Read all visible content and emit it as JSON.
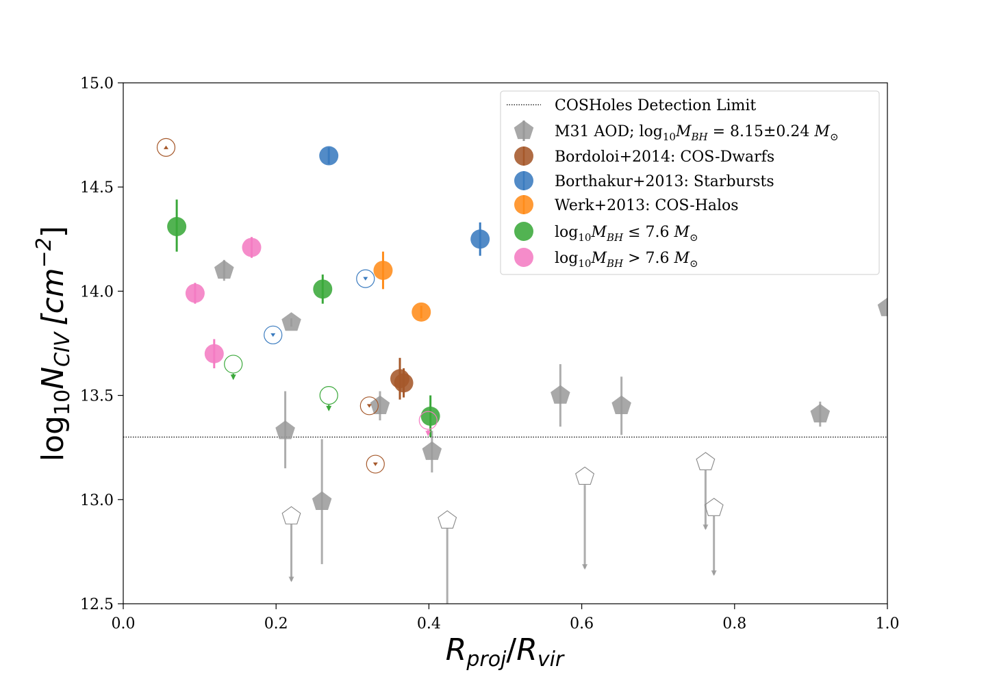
{
  "chart_data": {
    "type": "scatter",
    "xlim": [
      0.0,
      1.0
    ],
    "ylim": [
      12.5,
      15.0
    ],
    "xticks": [
      0.0,
      0.2,
      0.4,
      0.6,
      0.8,
      1.0
    ],
    "yticks": [
      12.5,
      13.0,
      13.5,
      14.0,
      14.5,
      15.0
    ],
    "xtick_labels": [
      "0.0",
      "0.2",
      "0.4",
      "0.6",
      "0.8",
      "1.0"
    ],
    "ytick_labels": [
      "12.5",
      "13.0",
      "13.5",
      "14.0",
      "14.5",
      "15.0"
    ],
    "xlabel": {
      "base": "R",
      "num_sub": "proj",
      "sep": "/",
      "den": "R",
      "den_sub": "vir"
    },
    "ylabel": {
      "pre": "log",
      "pre_sub": "10",
      "main": "N",
      "main_sub": "CIV",
      "unit_open": "[cm",
      "unit_sup": "−2",
      "unit_close": "]"
    },
    "grid": false,
    "legend_position": "top-right",
    "detection_limit": {
      "y": 13.3,
      "label": "COSHoles Detection Limit"
    },
    "colors": {
      "m31": "#999999",
      "bordoloi": "#a5582a",
      "borthakur": "#3a7bbf",
      "werk": "#ff8c1a",
      "low_mbh": "#3aa83a",
      "high_mbh": "#f47cc3"
    },
    "legend": [
      {
        "key": "limit",
        "label": "COSHoles Detection Limit"
      },
      {
        "key": "m31",
        "parts": [
          "M31 AOD; log",
          "10",
          "M",
          "BH",
          " = 8.15±0.24 ",
          "M",
          "⊙"
        ]
      },
      {
        "key": "bordoloi",
        "label": "Bordoloi+2014: COS-Dwarfs"
      },
      {
        "key": "borthakur",
        "label": "Borthakur+2013: Starbursts"
      },
      {
        "key": "werk",
        "label": "Werk+2013: COS-Halos"
      },
      {
        "key": "low_mbh",
        "parts": [
          "log",
          "10",
          "M",
          "BH",
          " ≤ 7.6 ",
          "M",
          "⊙"
        ]
      },
      {
        "key": "high_mbh",
        "parts": [
          "log",
          "10",
          "M",
          "BH",
          " > 7.6 ",
          "M",
          "⊙"
        ]
      }
    ],
    "series": [
      {
        "name": "M31 AOD",
        "key": "m31",
        "marker": "pentagon",
        "points": [
          {
            "x": 0.132,
            "y": 14.1,
            "lo": 0.05,
            "hi": 0.05
          },
          {
            "x": 0.22,
            "y": 13.85,
            "lo": 0.02,
            "hi": 0.02
          },
          {
            "x": 0.212,
            "y": 13.33,
            "lo": 0.18,
            "hi": 0.19
          },
          {
            "x": 0.26,
            "y": 12.99,
            "lo": 0.3,
            "hi": 0.3
          },
          {
            "x": 0.336,
            "y": 13.45,
            "lo": 0.07,
            "hi": 0.07
          },
          {
            "x": 0.404,
            "y": 13.23,
            "lo": 0.1,
            "hi": 0.1
          },
          {
            "x": 0.572,
            "y": 13.5,
            "lo": 0.15,
            "hi": 0.15
          },
          {
            "x": 0.652,
            "y": 13.45,
            "lo": 0.14,
            "hi": 0.14
          },
          {
            "x": 0.912,
            "y": 13.41,
            "lo": 0.06,
            "hi": 0.06
          },
          {
            "x": 1.0,
            "y": 13.92,
            "lo": 0.0,
            "hi": 0.0
          }
        ],
        "upper_limits": [
          {
            "x": 0.22,
            "y": 12.92,
            "arrow_to": 12.61
          },
          {
            "x": 0.424,
            "y": 12.9,
            "arrow_to": 12.45
          },
          {
            "x": 0.604,
            "y": 13.11,
            "arrow_to": 12.67
          },
          {
            "x": 0.762,
            "y": 13.18,
            "arrow_to": 12.86
          },
          {
            "x": 0.773,
            "y": 12.96,
            "arrow_to": 12.64
          }
        ]
      },
      {
        "name": "Bordoloi+2014: COS-Dwarfs",
        "key": "bordoloi",
        "marker": "circle",
        "points": [
          {
            "x": 0.362,
            "y": 13.58,
            "lo": 0.1,
            "hi": 0.1
          },
          {
            "x": 0.367,
            "y": 13.56,
            "lo": 0.07,
            "hi": 0.07
          }
        ],
        "upper_limits": [
          {
            "x": 0.322,
            "y": 13.45
          },
          {
            "x": 0.33,
            "y": 13.17
          }
        ],
        "lower_limits": [
          {
            "x": 0.056,
            "y": 14.69
          }
        ]
      },
      {
        "name": "Borthakur+2013: Starbursts",
        "key": "borthakur",
        "marker": "circle",
        "points": [
          {
            "x": 0.269,
            "y": 14.65,
            "lo": 0.04,
            "hi": 0.04
          },
          {
            "x": 0.467,
            "y": 14.25,
            "lo": 0.08,
            "hi": 0.08
          }
        ],
        "upper_limits": [
          {
            "x": 0.196,
            "y": 13.79
          },
          {
            "x": 0.317,
            "y": 14.06
          }
        ]
      },
      {
        "name": "Werk+2013: COS-Halos",
        "key": "werk",
        "marker": "circle",
        "points": [
          {
            "x": 0.34,
            "y": 14.1,
            "lo": 0.09,
            "hi": 0.09
          },
          {
            "x": 0.39,
            "y": 13.9,
            "lo": 0.03,
            "hi": 0.03
          }
        ]
      },
      {
        "name": "log10 M_BH ≤ 7.6",
        "key": "low_mbh",
        "marker": "circle",
        "points": [
          {
            "x": 0.07,
            "y": 14.31,
            "lo": 0.12,
            "hi": 0.13
          },
          {
            "x": 0.261,
            "y": 14.01,
            "lo": 0.07,
            "hi": 0.07
          },
          {
            "x": 0.402,
            "y": 13.4,
            "lo": 0.1,
            "hi": 0.1
          }
        ],
        "upper_limits": [
          {
            "x": 0.144,
            "y": 13.65,
            "arrow_to": 13.58
          },
          {
            "x": 0.269,
            "y": 13.5,
            "arrow_to": 13.43
          }
        ]
      },
      {
        "name": "log10 M_BH > 7.6",
        "key": "high_mbh",
        "marker": "circle",
        "points": [
          {
            "x": 0.094,
            "y": 13.99,
            "lo": 0.05,
            "hi": 0.05
          },
          {
            "x": 0.168,
            "y": 14.21,
            "lo": 0.05,
            "hi": 0.05
          },
          {
            "x": 0.119,
            "y": 13.7,
            "lo": 0.07,
            "hi": 0.07
          }
        ],
        "upper_limits": [
          {
            "x": 0.399,
            "y": 13.38,
            "arrow_to": 13.31
          }
        ]
      }
    ]
  }
}
